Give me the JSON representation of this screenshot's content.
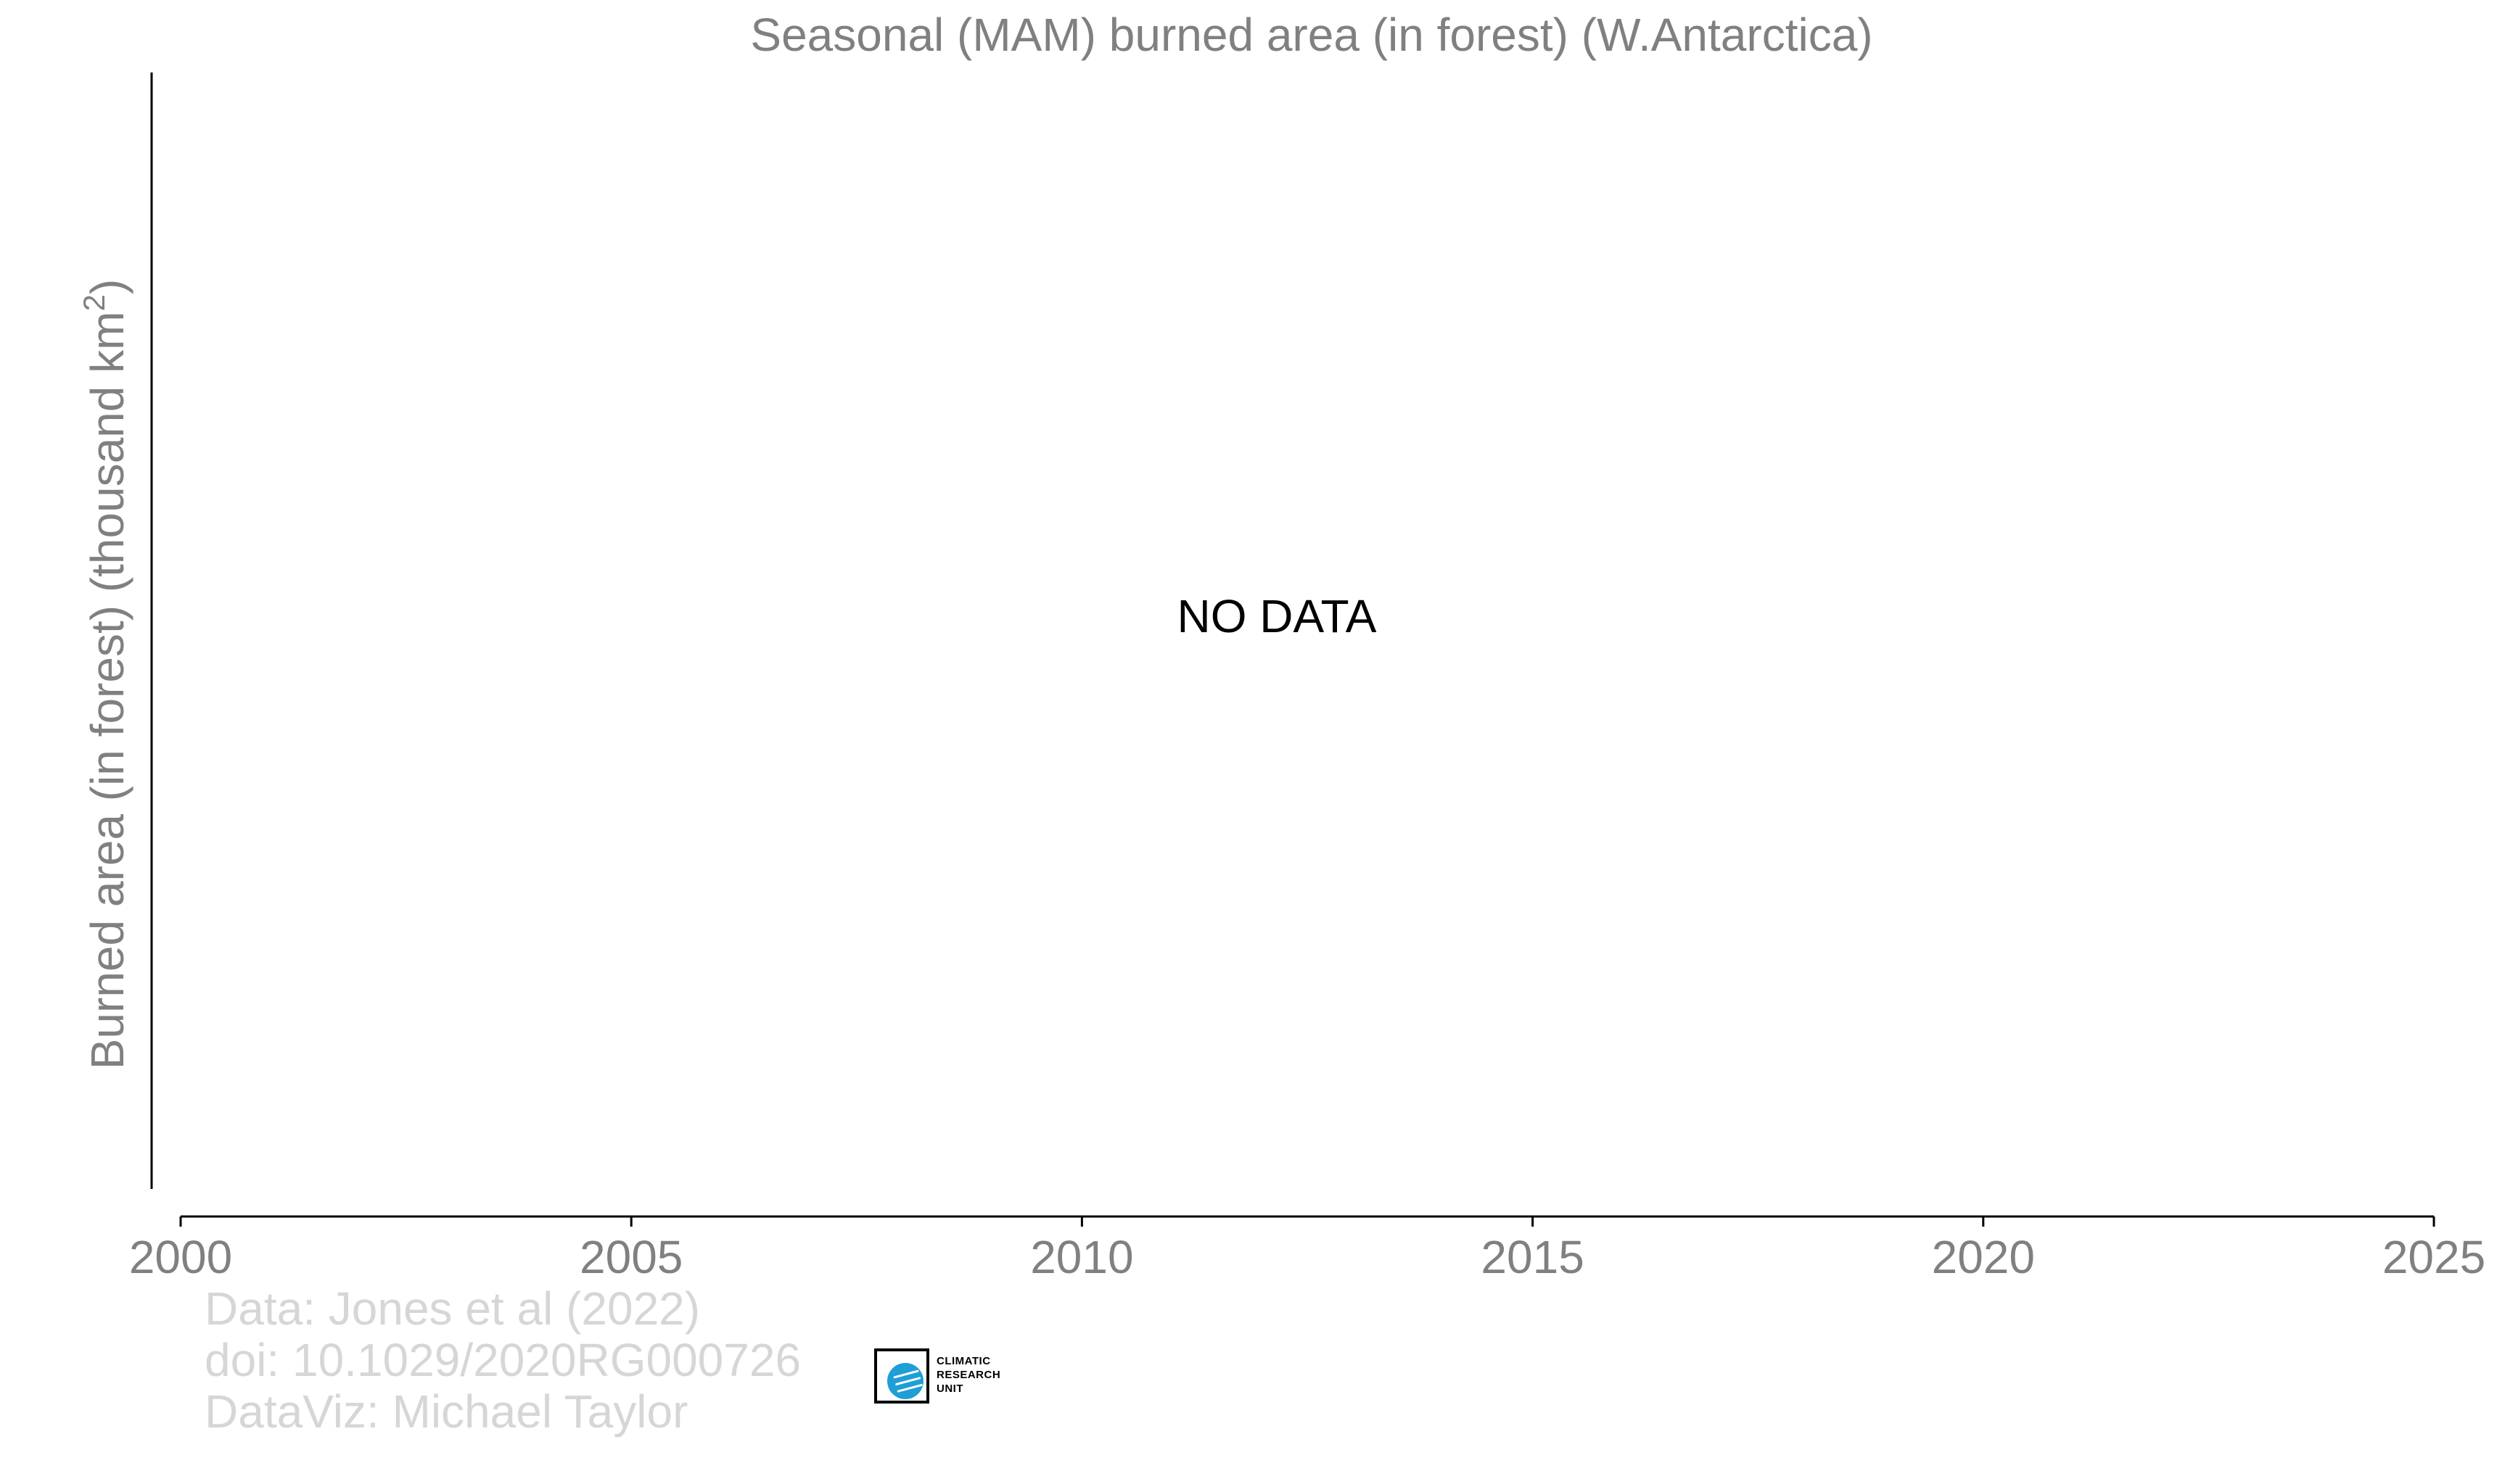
{
  "chart_data": {
    "type": "line",
    "title": "Seasonal (MAM) burned area (in forest) (W.Antarctica)",
    "ylabel_main": "Burned area (in forest) (thousand km",
    "ylabel_sup": "2",
    "ylabel_close": ")",
    "xlabel": "",
    "xlim": [
      2000,
      2025
    ],
    "x_ticks": [
      2000,
      2005,
      2010,
      2015,
      2020,
      2025
    ],
    "x_tick_labels": [
      "2000",
      "2005",
      "2010",
      "2015",
      "2020",
      "2025"
    ],
    "series": [],
    "annotation": "NO DATA",
    "grid": false
  },
  "credits": {
    "line1": "Data: Jones et al (2022)",
    "line2": "doi: 10.1029/2020RG000726",
    "line3": "DataViz: Michael Taylor"
  },
  "logo": {
    "line1": "CLIMATIC",
    "line2": "RESEARCH",
    "line3": "UNIT",
    "globe_color": "#1e9fd6"
  },
  "colors": {
    "title": "#808080",
    "axis_label": "#808080",
    "tick_label": "#808080",
    "credits": "#d6d6d6",
    "annotation": "#000000"
  }
}
